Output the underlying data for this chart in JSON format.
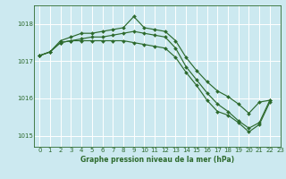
{
  "title": "Graphe pression niveau de la mer (hPa)",
  "bg_color": "#cce9f0",
  "grid_color": "#ffffff",
  "line_color": "#2d6a2d",
  "xlim": [
    -0.5,
    23
  ],
  "ylim": [
    1014.7,
    1018.5
  ],
  "yticks": [
    1015,
    1016,
    1017,
    1018
  ],
  "xticks": [
    0,
    1,
    2,
    3,
    4,
    5,
    6,
    7,
    8,
    9,
    10,
    11,
    12,
    13,
    14,
    15,
    16,
    17,
    18,
    19,
    20,
    21,
    22,
    23
  ],
  "series": [
    [
      1017.15,
      1017.25,
      1017.55,
      1017.65,
      1017.75,
      1017.75,
      1017.8,
      1017.85,
      1017.9,
      1018.2,
      1017.9,
      1017.85,
      1017.8,
      1017.55,
      1017.1,
      1016.75,
      1016.45,
      1016.2,
      1016.05,
      1015.85,
      1015.6,
      1015.9,
      1015.95
    ],
    [
      1017.15,
      1017.25,
      1017.5,
      1017.55,
      1017.6,
      1017.65,
      1017.65,
      1017.7,
      1017.75,
      1017.8,
      1017.75,
      1017.7,
      1017.65,
      1017.35,
      1016.85,
      1016.5,
      1016.15,
      1015.85,
      1015.65,
      1015.4,
      1015.2,
      1015.35,
      1015.95
    ],
    [
      1017.15,
      1017.25,
      1017.5,
      1017.55,
      1017.55,
      1017.55,
      1017.55,
      1017.55,
      1017.55,
      1017.5,
      1017.45,
      1017.4,
      1017.35,
      1017.1,
      1016.7,
      1016.35,
      1015.95,
      1015.65,
      1015.55,
      1015.35,
      1015.1,
      1015.3,
      1015.9
    ]
  ]
}
